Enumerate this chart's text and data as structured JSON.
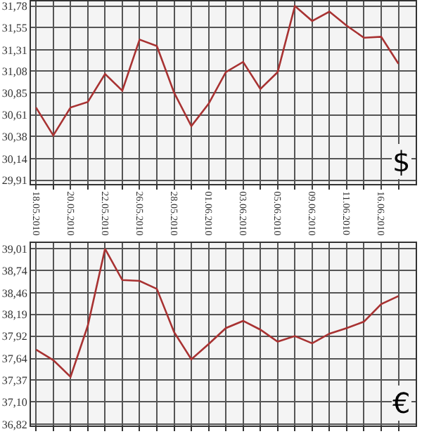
{
  "chart_data": [
    {
      "type": "line",
      "categories": [
        "18.05.2010",
        null,
        "20.05.2010",
        null,
        "22.05.2010",
        null,
        "26.05.2010",
        null,
        "28.05.2010",
        null,
        "01.06.2010",
        null,
        "03.06.2010",
        null,
        "05.06.2010",
        null,
        "09.06.2010",
        null,
        "11.06.2010",
        null,
        "16.06.2010",
        null
      ],
      "series": [
        {
          "color": "#a83232",
          "values": [
            30.69,
            30.39,
            30.69,
            30.75,
            31.05,
            30.87,
            31.42,
            31.35,
            30.85,
            30.49,
            30.73,
            31.07,
            31.18,
            30.89,
            31.07,
            31.78,
            31.62,
            31.72,
            31.57,
            31.44,
            31.45,
            31.16
          ]
        }
      ],
      "ylim": [
        29.87,
        31.83
      ],
      "yticks": [
        {
          "value": 29.91,
          "label": "29,91"
        },
        {
          "value": 30.14,
          "label": "30,14"
        },
        {
          "value": 30.38,
          "label": "30,38"
        },
        {
          "value": 30.61,
          "label": "30,61"
        },
        {
          "value": 30.85,
          "label": "30,85"
        },
        {
          "value": 31.08,
          "label": "31,08"
        },
        {
          "value": 31.31,
          "label": "31,31"
        },
        {
          "value": 31.55,
          "label": "31,55"
        },
        {
          "value": 31.78,
          "label": "31,78"
        }
      ],
      "grid": true,
      "marker": "none",
      "annotations": [
        "$"
      ]
    },
    {
      "type": "line",
      "categories": [
        "18.05.2010",
        null,
        "20.05.2010",
        null,
        "22.05.2010",
        null,
        "26.05.2010",
        null,
        "28.05.2010",
        null,
        "01.06.2010",
        null,
        "03.06.2010",
        null,
        "05.06.2010",
        null,
        "09.06.2010",
        null,
        "11.06.2010",
        null,
        "16.06.2010",
        null
      ],
      "series": [
        {
          "color": "#a83232",
          "values": [
            37.75,
            37.62,
            37.41,
            38.05,
            39.01,
            38.62,
            38.61,
            38.51,
            37.97,
            37.63,
            37.82,
            38.02,
            38.11,
            38.0,
            37.85,
            37.92,
            37.83,
            37.95,
            38.02,
            38.1,
            38.32,
            38.42
          ]
        }
      ],
      "ylim": [
        36.8,
        39.08
      ],
      "yticks": [
        {
          "value": 36.82,
          "label": "36,82"
        },
        {
          "value": 37.1,
          "label": "37,10"
        },
        {
          "value": 37.37,
          "label": "37,37"
        },
        {
          "value": 37.64,
          "label": "37,64"
        },
        {
          "value": 37.92,
          "label": "37,92"
        },
        {
          "value": 38.19,
          "label": "38,19"
        },
        {
          "value": 38.46,
          "label": "38,46"
        },
        {
          "value": 38.74,
          "label": "38,74"
        },
        {
          "value": 39.01,
          "label": "39,01"
        }
      ],
      "grid": true,
      "marker": "none",
      "tick_labels": "y",
      "annotations": [
        "€"
      ]
    }
  ]
}
